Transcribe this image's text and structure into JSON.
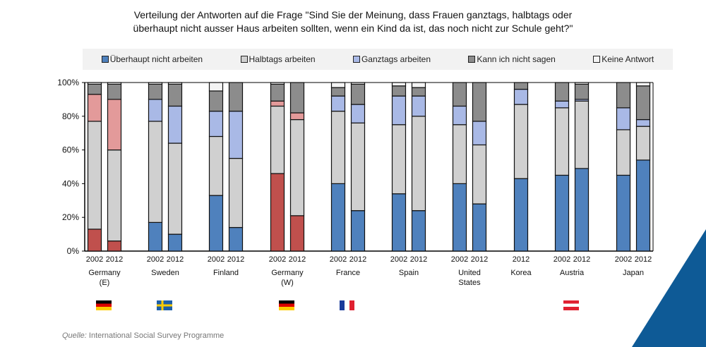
{
  "chart_data": {
    "type": "bar",
    "stacked": true,
    "title": "Verteilung der Antworten auf die Frage \"Sind Sie der Meinung, dass Frauen ganztags, halbtags oder überhaupt nicht ausser Haus arbeiten sollten, wenn ein Kind da ist, das noch nicht zur Schule geht?\"",
    "title_lines": [
      "Verteilung der Antworten auf die Frage \"Sind Sie der Meinung, dass  Frauen ganztags, halbtags oder",
      "überhaupt nicht ausser Haus arbeiten sollten, wenn ein Kind da ist, das noch nicht zur Schule geht?\""
    ],
    "ylim": [
      0,
      100
    ],
    "yticks": [
      "0%",
      "20%",
      "40%",
      "60%",
      "80%",
      "100%"
    ],
    "legend_position": "top",
    "series_names": [
      "Überhaupt nicht arbeiten",
      "Halbtags arbeiten",
      "Ganztags arbeiten",
      "Kann ich nicht sagen",
      "Keine Antwort"
    ],
    "colors": {
      "default": [
        "#4f81bd",
        "#d0d0d0",
        "#a9b9e6",
        "#8c8c8c",
        "#f4f4f4"
      ],
      "germany": [
        "#c0504d",
        "#d0d0d0",
        "#e39a9a",
        "#8c8c8c",
        "#f4f4f4"
      ]
    },
    "groups": [
      {
        "label": [
          "Germany",
          "(E)"
        ],
        "palette": "germany",
        "flag": "de",
        "bars": [
          {
            "year": "2002",
            "values": [
              13,
              64,
              16,
              6,
              1
            ]
          },
          {
            "year": "2012",
            "values": [
              6,
              54,
              30,
              9,
              1
            ]
          }
        ]
      },
      {
        "label": [
          "Sweden"
        ],
        "palette": "default",
        "flag": "se",
        "bars": [
          {
            "year": "2002",
            "values": [
              17,
              60,
              13,
              9,
              1
            ]
          },
          {
            "year": "2012",
            "values": [
              10,
              54,
              22,
              13,
              1
            ]
          }
        ]
      },
      {
        "label": [
          "Finland"
        ],
        "palette": "default",
        "bars": [
          {
            "year": "2002",
            "values": [
              33,
              35,
              15,
              12,
              5
            ]
          },
          {
            "year": "2012",
            "values": [
              14,
              41,
              28,
              17,
              0
            ]
          }
        ]
      },
      {
        "label": [
          "Germany",
          "(W)"
        ],
        "palette": "germany",
        "flag": "de",
        "bars": [
          {
            "year": "2002",
            "values": [
              46,
              40,
              3,
              10,
              1
            ]
          },
          {
            "year": "2012",
            "values": [
              21,
              57,
              4,
              18,
              0
            ]
          }
        ]
      },
      {
        "label": [
          "France"
        ],
        "palette": "default",
        "flag": "fr",
        "bars": [
          {
            "year": "2002",
            "values": [
              40,
              43,
              9,
              5,
              3
            ]
          },
          {
            "year": "2012",
            "values": [
              24,
              52,
              11,
              12,
              1
            ]
          }
        ]
      },
      {
        "label": [
          "Spain"
        ],
        "palette": "default",
        "bars": [
          {
            "year": "2002",
            "values": [
              34,
              41,
              17,
              6,
              2
            ]
          },
          {
            "year": "2012",
            "values": [
              24,
              56,
              12,
              5,
              3
            ]
          }
        ]
      },
      {
        "label": [
          "United",
          "States"
        ],
        "palette": "default",
        "bars": [
          {
            "year": "2002",
            "values": [
              40,
              35,
              11,
              14,
              0
            ]
          },
          {
            "year": "2012",
            "values": [
              28,
              35,
              14,
              23,
              0
            ]
          }
        ]
      },
      {
        "label": [
          "Korea"
        ],
        "palette": "default",
        "bars": [
          {
            "year": "2012",
            "values": [
              43,
              44,
              9,
              4,
              0
            ]
          }
        ]
      },
      {
        "label": [
          "Austria"
        ],
        "palette": "default",
        "flag": "at",
        "bars": [
          {
            "year": "2002",
            "values": [
              45,
              40,
              4,
              11,
              0
            ]
          },
          {
            "year": "2012",
            "values": [
              49,
              40,
              1,
              9,
              1
            ]
          }
        ]
      },
      {
        "label": [
          "Japan"
        ],
        "palette": "default",
        "bars": [
          {
            "year": "2002",
            "values": [
              45,
              27,
              13,
              15,
              0
            ]
          },
          {
            "year": "2012",
            "values": [
              54,
              20,
              4,
              20,
              2
            ]
          }
        ]
      }
    ]
  },
  "source": {
    "label": "Quelle:",
    "text": " International  Social  Survey Programme"
  }
}
